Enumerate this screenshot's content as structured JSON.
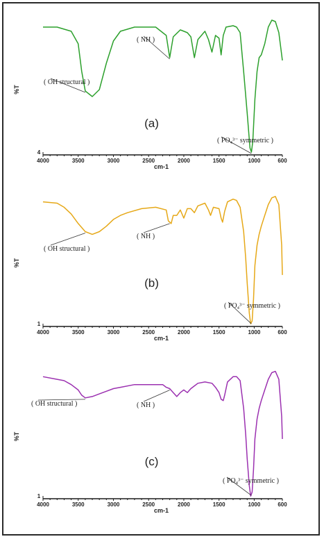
{
  "chart_data": [
    {
      "type": "line",
      "panel_label": "(a)",
      "xlabel": "cm-1",
      "ylabel": "%T",
      "y_min_tick": "4",
      "xlim": [
        4000,
        600
      ],
      "x_ticks": [
        4000,
        3500,
        3000,
        2500,
        2000,
        1500,
        1000,
        600
      ],
      "color": "#2ca02c",
      "series": [
        {
          "points": [
            [
              4000,
              0.92
            ],
            [
              3800,
              0.92
            ],
            [
              3600,
              0.89
            ],
            [
              3500,
              0.8
            ],
            [
              3450,
              0.6
            ],
            [
              3400,
              0.46
            ],
            [
              3300,
              0.42
            ],
            [
              3200,
              0.47
            ],
            [
              3100,
              0.66
            ],
            [
              3000,
              0.82
            ],
            [
              2900,
              0.89
            ],
            [
              2700,
              0.92
            ],
            [
              2400,
              0.92
            ],
            [
              2250,
              0.86
            ],
            [
              2200,
              0.7
            ],
            [
              2150,
              0.85
            ],
            [
              2050,
              0.9
            ],
            [
              1950,
              0.88
            ],
            [
              1900,
              0.85
            ],
            [
              1850,
              0.7
            ],
            [
              1800,
              0.83
            ],
            [
              1700,
              0.89
            ],
            [
              1650,
              0.83
            ],
            [
              1600,
              0.74
            ],
            [
              1550,
              0.86
            ],
            [
              1500,
              0.84
            ],
            [
              1470,
              0.72
            ],
            [
              1440,
              0.86
            ],
            [
              1400,
              0.92
            ],
            [
              1300,
              0.93
            ],
            [
              1250,
              0.92
            ],
            [
              1200,
              0.88
            ],
            [
              1150,
              0.6
            ],
            [
              1100,
              0.3
            ],
            [
              1060,
              0.05
            ],
            [
              1040,
              0.02
            ],
            [
              1020,
              0.1
            ],
            [
              990,
              0.4
            ],
            [
              960,
              0.6
            ],
            [
              930,
              0.7
            ],
            [
              900,
              0.72
            ],
            [
              850,
              0.8
            ],
            [
              800,
              0.92
            ],
            [
              750,
              0.97
            ],
            [
              700,
              0.96
            ],
            [
              650,
              0.88
            ],
            [
              610,
              0.72
            ],
            [
              600,
              0.68
            ]
          ]
        }
      ],
      "annotations": [
        {
          "text": "( OH structural )",
          "x": 3400
        },
        {
          "text": "( NH )",
          "x": 2200
        },
        {
          "text": "( PO₄³⁻ symmetric )",
          "x": 1040
        }
      ]
    },
    {
      "type": "line",
      "panel_label": "(b)",
      "xlabel": "cm-1",
      "ylabel": "%T",
      "y_min_tick": "1",
      "xlim": [
        4000,
        600
      ],
      "x_ticks": [
        4000,
        3500,
        3000,
        2500,
        2000,
        1500,
        1000,
        600
      ],
      "color": "#e6a817",
      "series": [
        {
          "points": [
            [
              4000,
              0.92
            ],
            [
              3800,
              0.91
            ],
            [
              3700,
              0.88
            ],
            [
              3600,
              0.83
            ],
            [
              3500,
              0.76
            ],
            [
              3400,
              0.7
            ],
            [
              3300,
              0.68
            ],
            [
              3200,
              0.7
            ],
            [
              3100,
              0.74
            ],
            [
              3000,
              0.79
            ],
            [
              2900,
              0.82
            ],
            [
              2800,
              0.84
            ],
            [
              2600,
              0.87
            ],
            [
              2400,
              0.88
            ],
            [
              2250,
              0.86
            ],
            [
              2220,
              0.78
            ],
            [
              2180,
              0.76
            ],
            [
              2150,
              0.82
            ],
            [
              2100,
              0.82
            ],
            [
              2050,
              0.86
            ],
            [
              2000,
              0.8
            ],
            [
              1950,
              0.87
            ],
            [
              1900,
              0.87
            ],
            [
              1850,
              0.84
            ],
            [
              1800,
              0.89
            ],
            [
              1700,
              0.91
            ],
            [
              1650,
              0.86
            ],
            [
              1620,
              0.82
            ],
            [
              1580,
              0.88
            ],
            [
              1500,
              0.87
            ],
            [
              1470,
              0.8
            ],
            [
              1450,
              0.77
            ],
            [
              1420,
              0.85
            ],
            [
              1380,
              0.92
            ],
            [
              1300,
              0.94
            ],
            [
              1250,
              0.93
            ],
            [
              1200,
              0.88
            ],
            [
              1150,
              0.7
            ],
            [
              1120,
              0.5
            ],
            [
              1100,
              0.32
            ],
            [
              1070,
              0.1
            ],
            [
              1050,
              0.02
            ],
            [
              1030,
              0.04
            ],
            [
              1010,
              0.2
            ],
            [
              990,
              0.45
            ],
            [
              960,
              0.6
            ],
            [
              930,
              0.68
            ],
            [
              900,
              0.74
            ],
            [
              850,
              0.82
            ],
            [
              800,
              0.9
            ],
            [
              750,
              0.95
            ],
            [
              700,
              0.96
            ],
            [
              650,
              0.9
            ],
            [
              610,
              0.6
            ],
            [
              600,
              0.38
            ]
          ]
        }
      ],
      "annotations": [
        {
          "text": "( OH structural )",
          "x": 3400
        },
        {
          "text": "( NH )",
          "x": 2200
        },
        {
          "text": "( PO₄³⁻ symmetric )",
          "x": 1040
        }
      ]
    },
    {
      "type": "line",
      "panel_label": "(c)",
      "xlabel": "cm-1",
      "ylabel": "%T",
      "y_min_tick": "1",
      "xlim": [
        4000,
        600
      ],
      "x_ticks": [
        4000,
        3500,
        3000,
        2500,
        2000,
        1500,
        1000,
        600
      ],
      "color": "#9b30b0",
      "series": [
        {
          "points": [
            [
              4000,
              0.92
            ],
            [
              3800,
              0.9
            ],
            [
              3700,
              0.89
            ],
            [
              3600,
              0.86
            ],
            [
              3500,
              0.82
            ],
            [
              3450,
              0.78
            ],
            [
              3400,
              0.76
            ],
            [
              3300,
              0.77
            ],
            [
              3200,
              0.79
            ],
            [
              3100,
              0.81
            ],
            [
              3000,
              0.83
            ],
            [
              2900,
              0.84
            ],
            [
              2700,
              0.86
            ],
            [
              2500,
              0.86
            ],
            [
              2300,
              0.86
            ],
            [
              2250,
              0.84
            ],
            [
              2200,
              0.83
            ],
            [
              2150,
              0.8
            ],
            [
              2100,
              0.77
            ],
            [
              2050,
              0.8
            ],
            [
              2000,
              0.82
            ],
            [
              1950,
              0.8
            ],
            [
              1900,
              0.83
            ],
            [
              1850,
              0.85
            ],
            [
              1800,
              0.87
            ],
            [
              1700,
              0.88
            ],
            [
              1600,
              0.87
            ],
            [
              1550,
              0.84
            ],
            [
              1500,
              0.8
            ],
            [
              1470,
              0.75
            ],
            [
              1440,
              0.74
            ],
            [
              1420,
              0.78
            ],
            [
              1380,
              0.88
            ],
            [
              1300,
              0.92
            ],
            [
              1250,
              0.92
            ],
            [
              1200,
              0.89
            ],
            [
              1150,
              0.68
            ],
            [
              1120,
              0.48
            ],
            [
              1100,
              0.3
            ],
            [
              1070,
              0.1
            ],
            [
              1050,
              0.02
            ],
            [
              1030,
              0.05
            ],
            [
              1010,
              0.22
            ],
            [
              990,
              0.45
            ],
            [
              960,
              0.6
            ],
            [
              930,
              0.68
            ],
            [
              900,
              0.74
            ],
            [
              850,
              0.82
            ],
            [
              800,
              0.9
            ],
            [
              750,
              0.95
            ],
            [
              700,
              0.96
            ],
            [
              650,
              0.9
            ],
            [
              610,
              0.62
            ],
            [
              600,
              0.45
            ]
          ]
        }
      ],
      "annotations": [
        {
          "text": "( OH structural )",
          "x": 3400
        },
        {
          "text": "( NH )",
          "x": 2200
        },
        {
          "text": "( PO₄³⁻ symmetric )",
          "x": 1040
        }
      ]
    }
  ]
}
